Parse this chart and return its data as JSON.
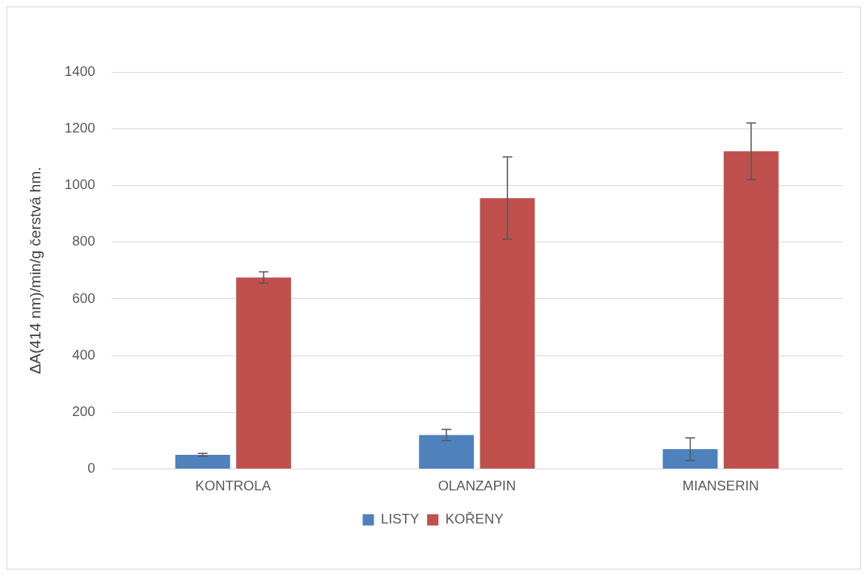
{
  "chart_data": {
    "type": "bar",
    "ylabel": "ΔA(414 nm)/min/g čerstvá hm.",
    "categories": [
      "KONTROLA",
      "OLANZAPIN",
      "MIANSERIN"
    ],
    "series": [
      {
        "name": "LISTY",
        "color": "#4f81bd",
        "values": [
          50,
          120,
          70
        ],
        "errors": [
          5,
          20,
          40
        ]
      },
      {
        "name": "KOŘENY",
        "color": "#c0504d",
        "values": [
          675,
          955,
          1120
        ],
        "errors": [
          20,
          145,
          100
        ]
      }
    ],
    "ylim": [
      0,
      1400
    ],
    "yticks": [
      0,
      200,
      400,
      600,
      800,
      1000,
      1200,
      1400
    ],
    "grid": "y",
    "legend": "bottom"
  }
}
